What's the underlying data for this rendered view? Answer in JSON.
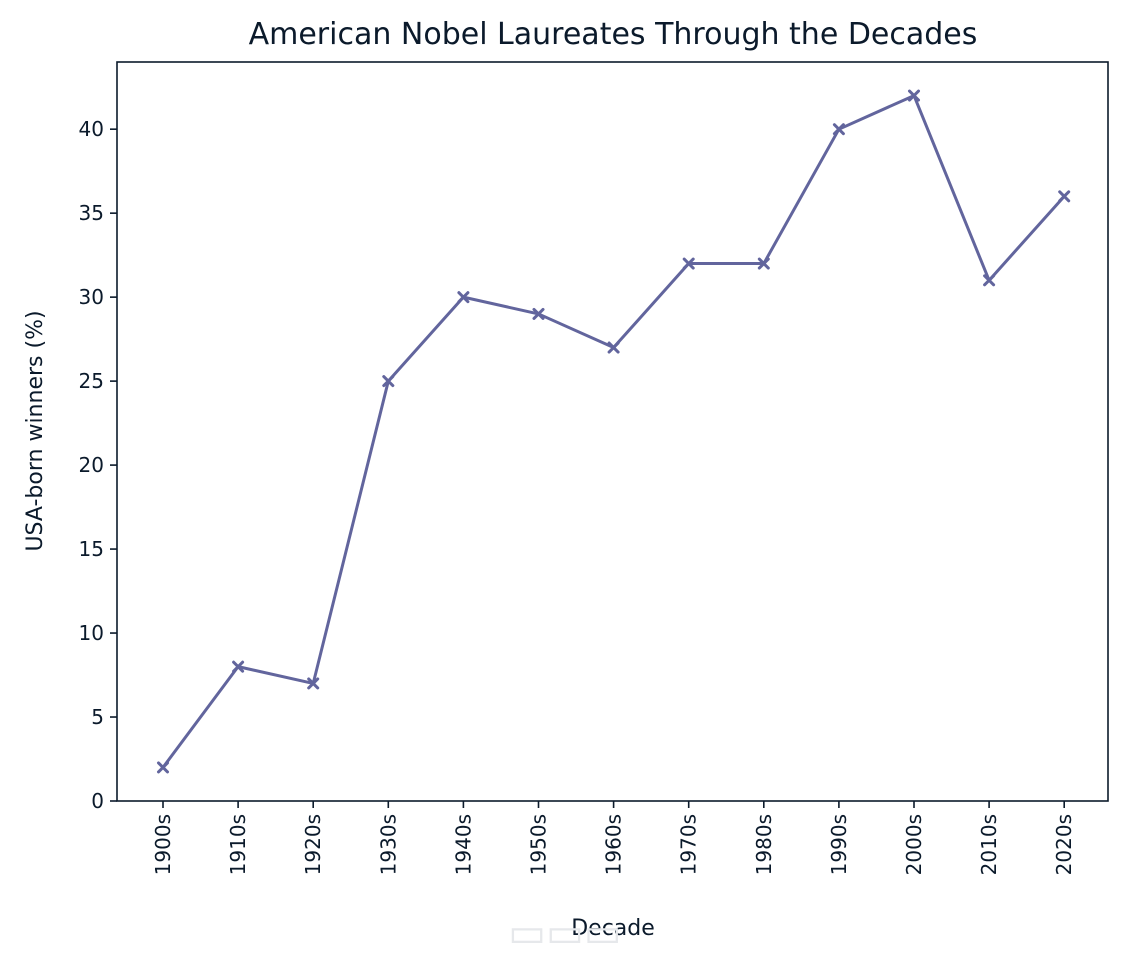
{
  "colors": {
    "series": "#62659d",
    "axis": "#0b1a2b",
    "watermark": "#e6e8eb"
  },
  "chart_data": {
    "type": "line",
    "title": "American Nobel Laureates Through the Decades",
    "xlabel": "Decade",
    "ylabel": "USA-born winners (%)",
    "categories": [
      "1900s",
      "1910s",
      "1920s",
      "1930s",
      "1940s",
      "1950s",
      "1960s",
      "1970s",
      "1980s",
      "1990s",
      "2000s",
      "2010s",
      "2020s"
    ],
    "values": [
      2,
      8,
      7,
      25,
      30,
      29,
      27,
      32,
      32,
      40,
      42,
      31,
      36
    ],
    "ylim": [
      0,
      44
    ],
    "yticks": [
      0,
      5,
      10,
      15,
      20,
      25,
      30,
      35,
      40
    ],
    "marker": "x",
    "grid": false,
    "legend": "none"
  }
}
